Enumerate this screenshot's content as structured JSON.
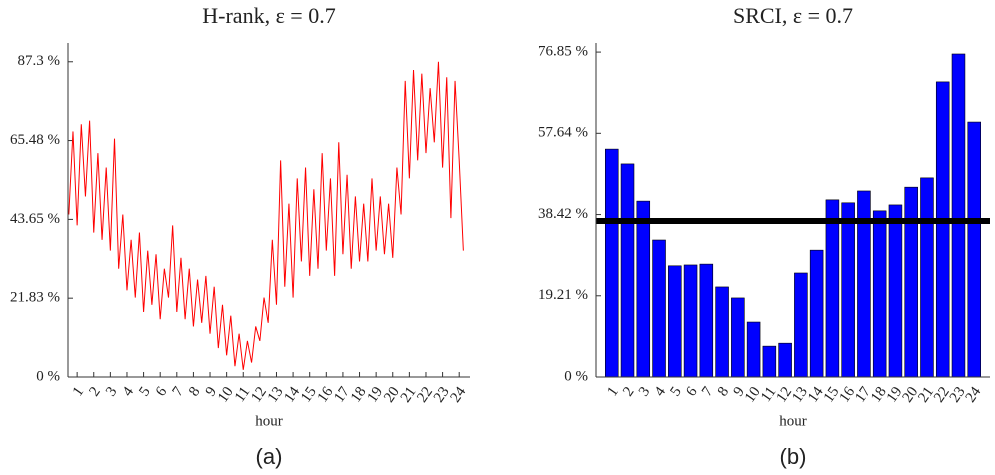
{
  "chart_data": [
    {
      "type": "line",
      "title": "H-rank, ε = 0.7",
      "x_label": "hour",
      "caption": "(a)",
      "color": "#ff0000",
      "xlim": [
        0.45,
        24.65
      ],
      "ylim": [
        0,
        92.5
      ],
      "xticks": [
        1,
        2,
        3,
        4,
        5,
        6,
        7,
        8,
        9,
        10,
        11,
        12,
        13,
        14,
        15,
        16,
        17,
        18,
        19,
        20,
        21,
        22,
        23,
        24
      ],
      "yticks": [
        {
          "value": 0,
          "label": "0 %"
        },
        {
          "value": 21.83,
          "label": "21.83 %"
        },
        {
          "value": 43.65,
          "label": "43.65 %"
        },
        {
          "value": 65.48,
          "label": "65.48 %"
        },
        {
          "value": 87.3,
          "label": "87.3 %"
        }
      ],
      "x": [
        0.5,
        0.75,
        1,
        1.25,
        1.5,
        1.75,
        2,
        2.25,
        2.5,
        2.75,
        3,
        3.25,
        3.5,
        3.75,
        4,
        4.25,
        4.5,
        4.75,
        5,
        5.25,
        5.5,
        5.75,
        6,
        6.25,
        6.5,
        6.75,
        7,
        7.25,
        7.5,
        7.75,
        8,
        8.25,
        8.5,
        8.75,
        9,
        9.25,
        9.5,
        9.75,
        10,
        10.25,
        10.5,
        10.75,
        11,
        11.25,
        11.5,
        11.75,
        12,
        12.25,
        12.5,
        12.75,
        13,
        13.25,
        13.5,
        13.75,
        14,
        14.25,
        14.5,
        14.75,
        15,
        15.25,
        15.5,
        15.75,
        16,
        16.25,
        16.5,
        16.75,
        17,
        17.25,
        17.5,
        17.75,
        18,
        18.25,
        18.5,
        18.75,
        19,
        19.25,
        19.5,
        19.75,
        20,
        20.25,
        20.5,
        20.75,
        21,
        21.25,
        21.5,
        21.75,
        22,
        22.25,
        22.5,
        22.75,
        23,
        23.25,
        23.5,
        23.75,
        24,
        24.25
      ],
      "values": [
        45,
        68,
        42,
        70,
        50,
        71,
        40,
        62,
        38,
        58,
        35,
        66,
        30,
        45,
        24,
        38,
        22,
        40,
        18,
        35,
        20,
        34,
        16,
        30,
        22,
        42,
        18,
        33,
        16,
        30,
        14,
        27,
        15,
        28,
        12,
        25,
        8,
        20,
        6,
        17,
        3,
        12,
        2,
        10,
        4,
        14,
        10,
        22,
        15,
        38,
        20,
        60,
        25,
        48,
        22,
        55,
        32,
        58,
        28,
        52,
        30,
        62,
        35,
        55,
        28,
        65,
        34,
        56,
        30,
        50,
        32,
        48,
        32,
        55,
        35,
        50,
        34,
        48,
        33,
        58,
        45,
        82,
        55,
        85,
        60,
        84,
        62,
        80,
        65,
        87.3,
        58,
        83,
        44,
        82,
        60,
        35
      ]
    },
    {
      "type": "bar",
      "title": "SRCI, ε = 0.7",
      "x_label": "hour",
      "caption": "(b)",
      "color": "#0000ff",
      "ylim": [
        0,
        79
      ],
      "yticks": [
        {
          "value": 0,
          "label": "0 %"
        },
        {
          "value": 19.21,
          "label": "19.21 %"
        },
        {
          "value": 38.42,
          "label": "38.42 %"
        },
        {
          "value": 57.64,
          "label": "57.64 %"
        },
        {
          "value": 76.85,
          "label": "76.85 %"
        }
      ],
      "categories": [
        "1",
        "2",
        "3",
        "4",
        "5",
        "6",
        "7",
        "8",
        "9",
        "10",
        "11",
        "12",
        "13",
        "14",
        "15",
        "16",
        "17",
        "18",
        "19",
        "20",
        "21",
        "22",
        "23",
        "24"
      ],
      "values": [
        53.9,
        50.4,
        41.6,
        32.4,
        26.3,
        26.5,
        26.7,
        21.3,
        18.7,
        13.0,
        7.3,
        8.0,
        24.6,
        30.0,
        41.9,
        41.2,
        44.0,
        39.3,
        40.7,
        44.9,
        47.1,
        69.8,
        76.4,
        60.3
      ],
      "reference_line": 36.9,
      "reference_color": "#000000"
    }
  ]
}
